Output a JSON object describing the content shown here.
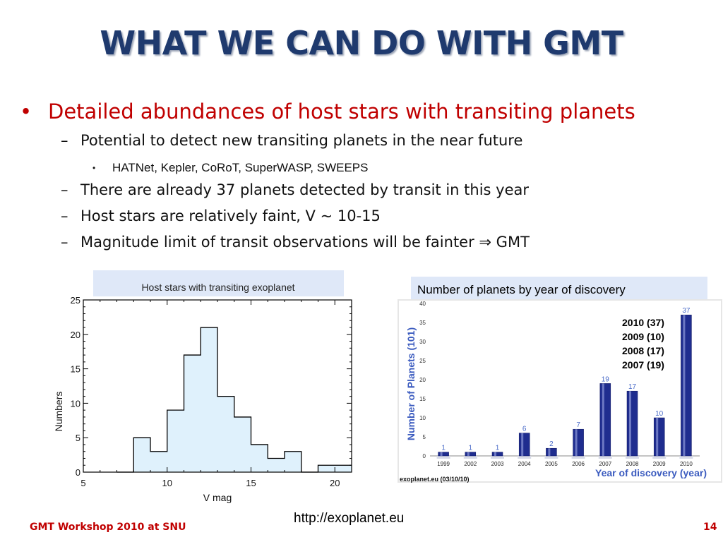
{
  "slide": {
    "title": "WHAT WE CAN DO WITH GMT",
    "bullet_main": "Detailed abundances of host stars with transiting planets",
    "sub_bullets": [
      "Potential to detect new transiting planets in the near future",
      "There are already 37 planets detected by transit in this year",
      "Host stars are relatively faint, V ~ 10-15",
      "Magnitude limit of transit observations will be fainter ⇒ GMT"
    ],
    "sub_sub_bullet": "HATNet, Kepler, CoRoT, SuperWASP, SWEEPS",
    "right_caption": "Number of planets by year of discovery",
    "url": "http://exoplanet.eu",
    "footer_left": "GMT Workshop 2010 at SNU",
    "page_number": "14"
  },
  "colors": {
    "title": "#1f3a6e",
    "bullet_red": "#c00000",
    "hist_fill": "#dff1fc",
    "bar_blue": "#1f2d8f",
    "axis_label_blue": "#3b5bbf"
  },
  "chart_data": [
    {
      "type": "bar",
      "title": "Host stars with transiting exoplanet",
      "xlabel": "V mag",
      "ylabel": "Numbers",
      "xlim": [
        5,
        21
      ],
      "ylim": [
        0,
        25
      ],
      "xticks": [
        5,
        10,
        15,
        20
      ],
      "yticks": [
        0,
        5,
        10,
        15,
        20,
        25
      ],
      "bins": [
        {
          "x0": 7,
          "x1": 8,
          "value": 0
        },
        {
          "x0": 8,
          "x1": 9,
          "value": 5
        },
        {
          "x0": 9,
          "x1": 10,
          "value": 3
        },
        {
          "x0": 10,
          "x1": 11,
          "value": 9
        },
        {
          "x0": 11,
          "x1": 12,
          "value": 17
        },
        {
          "x0": 12,
          "x1": 13,
          "value": 21
        },
        {
          "x0": 13,
          "x1": 14,
          "value": 11
        },
        {
          "x0": 14,
          "x1": 15,
          "value": 8
        },
        {
          "x0": 15,
          "x1": 16,
          "value": 4
        },
        {
          "x0": 16,
          "x1": 17,
          "value": 2
        },
        {
          "x0": 17,
          "x1": 18,
          "value": 3
        },
        {
          "x0": 18,
          "x1": 19,
          "value": 0
        },
        {
          "x0": 19,
          "x1": 21,
          "value": 1
        }
      ]
    },
    {
      "type": "bar",
      "xlabel": "Year of discovery (year)",
      "ylabel": "Number of Planets (101)",
      "ylim": [
        0,
        40
      ],
      "yticks": [
        0,
        5,
        10,
        15,
        20,
        25,
        30,
        35,
        40
      ],
      "categories": [
        "1999",
        "2002",
        "2003",
        "2004",
        "2005",
        "2006",
        "2007",
        "2008",
        "2009",
        "2010"
      ],
      "values": [
        1,
        1,
        1,
        6,
        2,
        7,
        19,
        17,
        10,
        37
      ],
      "legend_lines": [
        "2010 (37)",
        "2009 (10)",
        "2008 (17)",
        "2007 (19)"
      ],
      "source_note": "exoplanet.eu (03/10/10)"
    }
  ]
}
